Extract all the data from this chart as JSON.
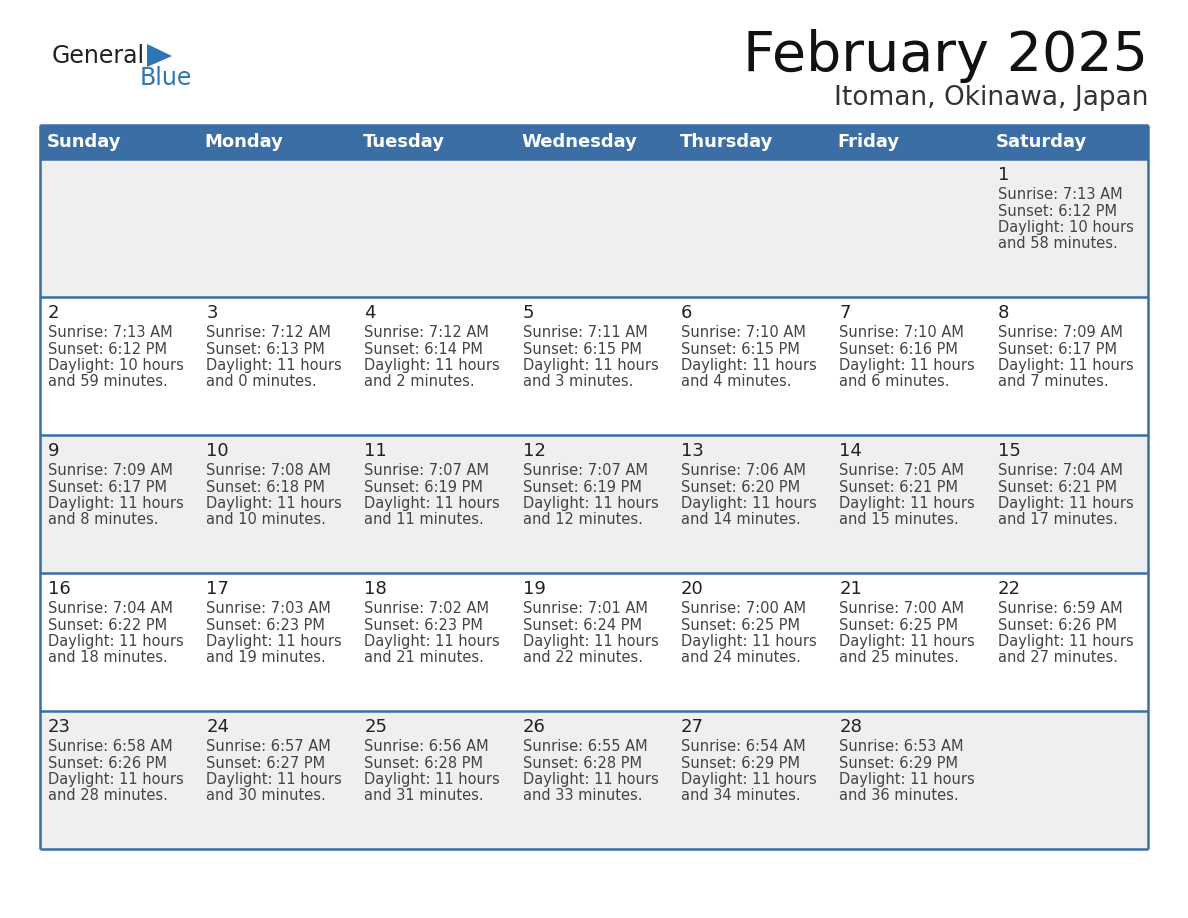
{
  "title": "February 2025",
  "subtitle": "Itoman, Okinawa, Japan",
  "days_of_week": [
    "Sunday",
    "Monday",
    "Tuesday",
    "Wednesday",
    "Thursday",
    "Friday",
    "Saturday"
  ],
  "header_bg": "#3A6EA5",
  "header_text_color": "#FFFFFF",
  "cell_bg_gray": "#EFEFEF",
  "cell_bg_white": "#FFFFFF",
  "cell_border_color": "#3A6EA5",
  "day_num_color": "#222222",
  "info_text_color": "#444444",
  "title_color": "#111111",
  "subtitle_color": "#333333",
  "logo_general_color": "#222222",
  "logo_blue_color": "#2E75B6",
  "calendar_data": [
    [
      null,
      null,
      null,
      null,
      null,
      null,
      {
        "day": 1,
        "sunrise": "7:13 AM",
        "sunset": "6:12 PM",
        "daylight_h": "10 hours",
        "daylight_m": "and 58 minutes."
      }
    ],
    [
      {
        "day": 2,
        "sunrise": "7:13 AM",
        "sunset": "6:12 PM",
        "daylight_h": "10 hours",
        "daylight_m": "and 59 minutes."
      },
      {
        "day": 3,
        "sunrise": "7:12 AM",
        "sunset": "6:13 PM",
        "daylight_h": "11 hours",
        "daylight_m": "and 0 minutes."
      },
      {
        "day": 4,
        "sunrise": "7:12 AM",
        "sunset": "6:14 PM",
        "daylight_h": "11 hours",
        "daylight_m": "and 2 minutes."
      },
      {
        "day": 5,
        "sunrise": "7:11 AM",
        "sunset": "6:15 PM",
        "daylight_h": "11 hours",
        "daylight_m": "and 3 minutes."
      },
      {
        "day": 6,
        "sunrise": "7:10 AM",
        "sunset": "6:15 PM",
        "daylight_h": "11 hours",
        "daylight_m": "and 4 minutes."
      },
      {
        "day": 7,
        "sunrise": "7:10 AM",
        "sunset": "6:16 PM",
        "daylight_h": "11 hours",
        "daylight_m": "and 6 minutes."
      },
      {
        "day": 8,
        "sunrise": "7:09 AM",
        "sunset": "6:17 PM",
        "daylight_h": "11 hours",
        "daylight_m": "and 7 minutes."
      }
    ],
    [
      {
        "day": 9,
        "sunrise": "7:09 AM",
        "sunset": "6:17 PM",
        "daylight_h": "11 hours",
        "daylight_m": "and 8 minutes."
      },
      {
        "day": 10,
        "sunrise": "7:08 AM",
        "sunset": "6:18 PM",
        "daylight_h": "11 hours",
        "daylight_m": "and 10 minutes."
      },
      {
        "day": 11,
        "sunrise": "7:07 AM",
        "sunset": "6:19 PM",
        "daylight_h": "11 hours",
        "daylight_m": "and 11 minutes."
      },
      {
        "day": 12,
        "sunrise": "7:07 AM",
        "sunset": "6:19 PM",
        "daylight_h": "11 hours",
        "daylight_m": "and 12 minutes."
      },
      {
        "day": 13,
        "sunrise": "7:06 AM",
        "sunset": "6:20 PM",
        "daylight_h": "11 hours",
        "daylight_m": "and 14 minutes."
      },
      {
        "day": 14,
        "sunrise": "7:05 AM",
        "sunset": "6:21 PM",
        "daylight_h": "11 hours",
        "daylight_m": "and 15 minutes."
      },
      {
        "day": 15,
        "sunrise": "7:04 AM",
        "sunset": "6:21 PM",
        "daylight_h": "11 hours",
        "daylight_m": "and 17 minutes."
      }
    ],
    [
      {
        "day": 16,
        "sunrise": "7:04 AM",
        "sunset": "6:22 PM",
        "daylight_h": "11 hours",
        "daylight_m": "and 18 minutes."
      },
      {
        "day": 17,
        "sunrise": "7:03 AM",
        "sunset": "6:23 PM",
        "daylight_h": "11 hours",
        "daylight_m": "and 19 minutes."
      },
      {
        "day": 18,
        "sunrise": "7:02 AM",
        "sunset": "6:23 PM",
        "daylight_h": "11 hours",
        "daylight_m": "and 21 minutes."
      },
      {
        "day": 19,
        "sunrise": "7:01 AM",
        "sunset": "6:24 PM",
        "daylight_h": "11 hours",
        "daylight_m": "and 22 minutes."
      },
      {
        "day": 20,
        "sunrise": "7:00 AM",
        "sunset": "6:25 PM",
        "daylight_h": "11 hours",
        "daylight_m": "and 24 minutes."
      },
      {
        "day": 21,
        "sunrise": "7:00 AM",
        "sunset": "6:25 PM",
        "daylight_h": "11 hours",
        "daylight_m": "and 25 minutes."
      },
      {
        "day": 22,
        "sunrise": "6:59 AM",
        "sunset": "6:26 PM",
        "daylight_h": "11 hours",
        "daylight_m": "and 27 minutes."
      }
    ],
    [
      {
        "day": 23,
        "sunrise": "6:58 AM",
        "sunset": "6:26 PM",
        "daylight_h": "11 hours",
        "daylight_m": "and 28 minutes."
      },
      {
        "day": 24,
        "sunrise": "6:57 AM",
        "sunset": "6:27 PM",
        "daylight_h": "11 hours",
        "daylight_m": "and 30 minutes."
      },
      {
        "day": 25,
        "sunrise": "6:56 AM",
        "sunset": "6:28 PM",
        "daylight_h": "11 hours",
        "daylight_m": "and 31 minutes."
      },
      {
        "day": 26,
        "sunrise": "6:55 AM",
        "sunset": "6:28 PM",
        "daylight_h": "11 hours",
        "daylight_m": "and 33 minutes."
      },
      {
        "day": 27,
        "sunrise": "6:54 AM",
        "sunset": "6:29 PM",
        "daylight_h": "11 hours",
        "daylight_m": "and 34 minutes."
      },
      {
        "day": 28,
        "sunrise": "6:53 AM",
        "sunset": "6:29 PM",
        "daylight_h": "11 hours",
        "daylight_m": "and 36 minutes."
      },
      null
    ]
  ]
}
